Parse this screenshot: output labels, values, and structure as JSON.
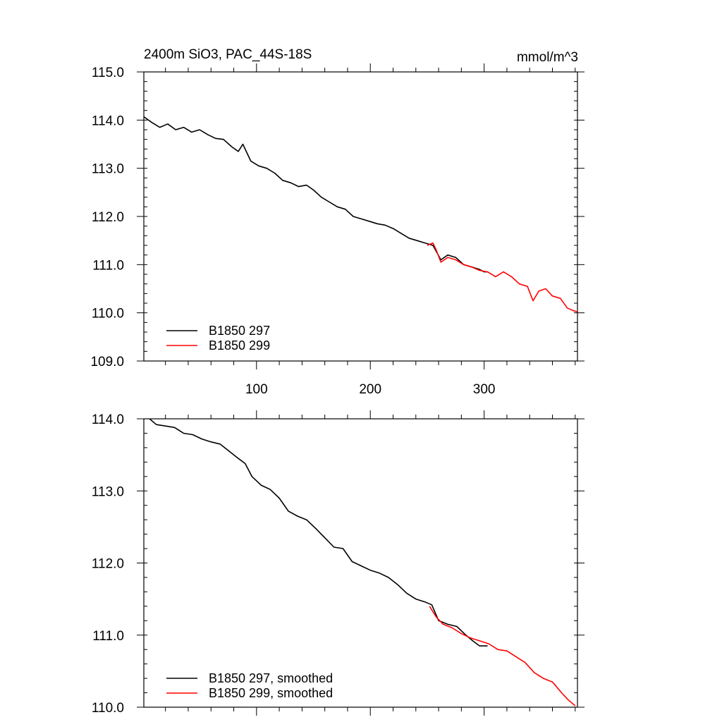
{
  "chart_data": [
    {
      "type": "line",
      "title": "2400m SiO3, PAC_44S-18S",
      "units": "mmol/m^3",
      "xlim": [
        1,
        382
      ],
      "ylim": [
        109.0,
        115.0
      ],
      "x_ticks": [
        100,
        200,
        300
      ],
      "x_tick_labels": [
        "100",
        "200",
        "300"
      ],
      "y_ticks": [
        109.0,
        110.0,
        111.0,
        112.0,
        113.0,
        114.0,
        115.0
      ],
      "y_tick_labels": [
        "109.0",
        "110.0",
        "111.0",
        "112.0",
        "113.0",
        "114.0",
        "115.0"
      ],
      "legend_position": "bottom-left",
      "series": [
        {
          "name": "B1850 297",
          "color": "#000000",
          "points": [
            [
              1,
              114.07
            ],
            [
              8,
              113.95
            ],
            [
              15,
              113.85
            ],
            [
              22,
              113.92
            ],
            [
              29,
              113.8
            ],
            [
              36,
              113.85
            ],
            [
              43,
              113.75
            ],
            [
              50,
              113.8
            ],
            [
              57,
              113.7
            ],
            [
              64,
              113.62
            ],
            [
              71,
              113.6
            ],
            [
              78,
              113.45
            ],
            [
              84,
              113.35
            ],
            [
              88,
              113.5
            ],
            [
              95,
              113.15
            ],
            [
              102,
              113.05
            ],
            [
              109,
              113.0
            ],
            [
              116,
              112.9
            ],
            [
              123,
              112.75
            ],
            [
              130,
              112.7
            ],
            [
              137,
              112.62
            ],
            [
              144,
              112.65
            ],
            [
              150,
              112.55
            ],
            [
              157,
              112.4
            ],
            [
              164,
              112.3
            ],
            [
              171,
              112.2
            ],
            [
              178,
              112.15
            ],
            [
              185,
              112.0
            ],
            [
              192,
              111.95
            ],
            [
              199,
              111.9
            ],
            [
              206,
              111.85
            ],
            [
              213,
              111.82
            ],
            [
              220,
              111.75
            ],
            [
              227,
              111.65
            ],
            [
              234,
              111.55
            ],
            [
              241,
              111.5
            ],
            [
              248,
              111.45
            ],
            [
              255,
              111.4
            ],
            [
              262,
              111.1
            ],
            [
              268,
              111.2
            ],
            [
              275,
              111.15
            ],
            [
              282,
              111.0
            ],
            [
              289,
              110.95
            ],
            [
              296,
              110.9
            ],
            [
              300,
              110.85
            ],
            [
              303,
              110.85
            ]
          ]
        },
        {
          "name": "B1850 299",
          "color": "#ff0000",
          "points": [
            [
              250,
              111.4
            ],
            [
              255,
              111.45
            ],
            [
              258,
              111.3
            ],
            [
              262,
              111.05
            ],
            [
              268,
              111.15
            ],
            [
              275,
              111.1
            ],
            [
              282,
              111.0
            ],
            [
              289,
              110.95
            ],
            [
              296,
              110.88
            ],
            [
              303,
              110.85
            ],
            [
              310,
              110.75
            ],
            [
              317,
              110.85
            ],
            [
              324,
              110.75
            ],
            [
              331,
              110.6
            ],
            [
              338,
              110.55
            ],
            [
              343,
              110.25
            ],
            [
              348,
              110.45
            ],
            [
              354,
              110.5
            ],
            [
              360,
              110.35
            ],
            [
              367,
              110.3
            ],
            [
              373,
              110.1
            ],
            [
              378,
              110.05
            ],
            [
              382,
              110.02
            ]
          ]
        }
      ]
    },
    {
      "type": "line",
      "xlim": [
        1,
        382
      ],
      "ylim": [
        110.0,
        114.0
      ],
      "x_ticks": [
        100,
        200,
        300
      ],
      "y_ticks": [
        110.0,
        111.0,
        112.0,
        113.0,
        114.0
      ],
      "y_tick_labels": [
        "110.0",
        "111.0",
        "112.0",
        "113.0",
        "114.0"
      ],
      "legend_position": "bottom-left",
      "series": [
        {
          "name": "B1850 297, smoothed",
          "color": "#000000",
          "points": [
            [
              6,
              114.0
            ],
            [
              12,
              113.92
            ],
            [
              20,
              113.9
            ],
            [
              28,
              113.88
            ],
            [
              36,
              113.8
            ],
            [
              44,
              113.78
            ],
            [
              52,
              113.72
            ],
            [
              60,
              113.68
            ],
            [
              68,
              113.65
            ],
            [
              76,
              113.55
            ],
            [
              84,
              113.45
            ],
            [
              90,
              113.38
            ],
            [
              96,
              113.2
            ],
            [
              104,
              113.08
            ],
            [
              112,
              113.02
            ],
            [
              120,
              112.9
            ],
            [
              128,
              112.72
            ],
            [
              136,
              112.65
            ],
            [
              144,
              112.6
            ],
            [
              152,
              112.48
            ],
            [
              160,
              112.35
            ],
            [
              168,
              112.22
            ],
            [
              176,
              112.2
            ],
            [
              184,
              112.02
            ],
            [
              192,
              111.96
            ],
            [
              200,
              111.9
            ],
            [
              208,
              111.86
            ],
            [
              216,
              111.8
            ],
            [
              224,
              111.7
            ],
            [
              232,
              111.58
            ],
            [
              240,
              111.5
            ],
            [
              248,
              111.46
            ],
            [
              254,
              111.42
            ],
            [
              260,
              111.2
            ],
            [
              268,
              111.15
            ],
            [
              276,
              111.12
            ],
            [
              284,
              111.0
            ],
            [
              290,
              110.92
            ],
            [
              296,
              110.85
            ],
            [
              303,
              110.85
            ]
          ]
        },
        {
          "name": "B1850 299, smoothed",
          "color": "#ff0000",
          "points": [
            [
              252,
              111.4
            ],
            [
              258,
              111.25
            ],
            [
              264,
              111.15
            ],
            [
              272,
              111.1
            ],
            [
              280,
              111.02
            ],
            [
              288,
              110.96
            ],
            [
              296,
              110.92
            ],
            [
              304,
              110.88
            ],
            [
              312,
              110.8
            ],
            [
              320,
              110.78
            ],
            [
              328,
              110.7
            ],
            [
              336,
              110.62
            ],
            [
              344,
              110.48
            ],
            [
              352,
              110.4
            ],
            [
              360,
              110.35
            ],
            [
              368,
              110.2
            ],
            [
              374,
              110.1
            ],
            [
              380,
              110.02
            ]
          ]
        }
      ]
    }
  ]
}
